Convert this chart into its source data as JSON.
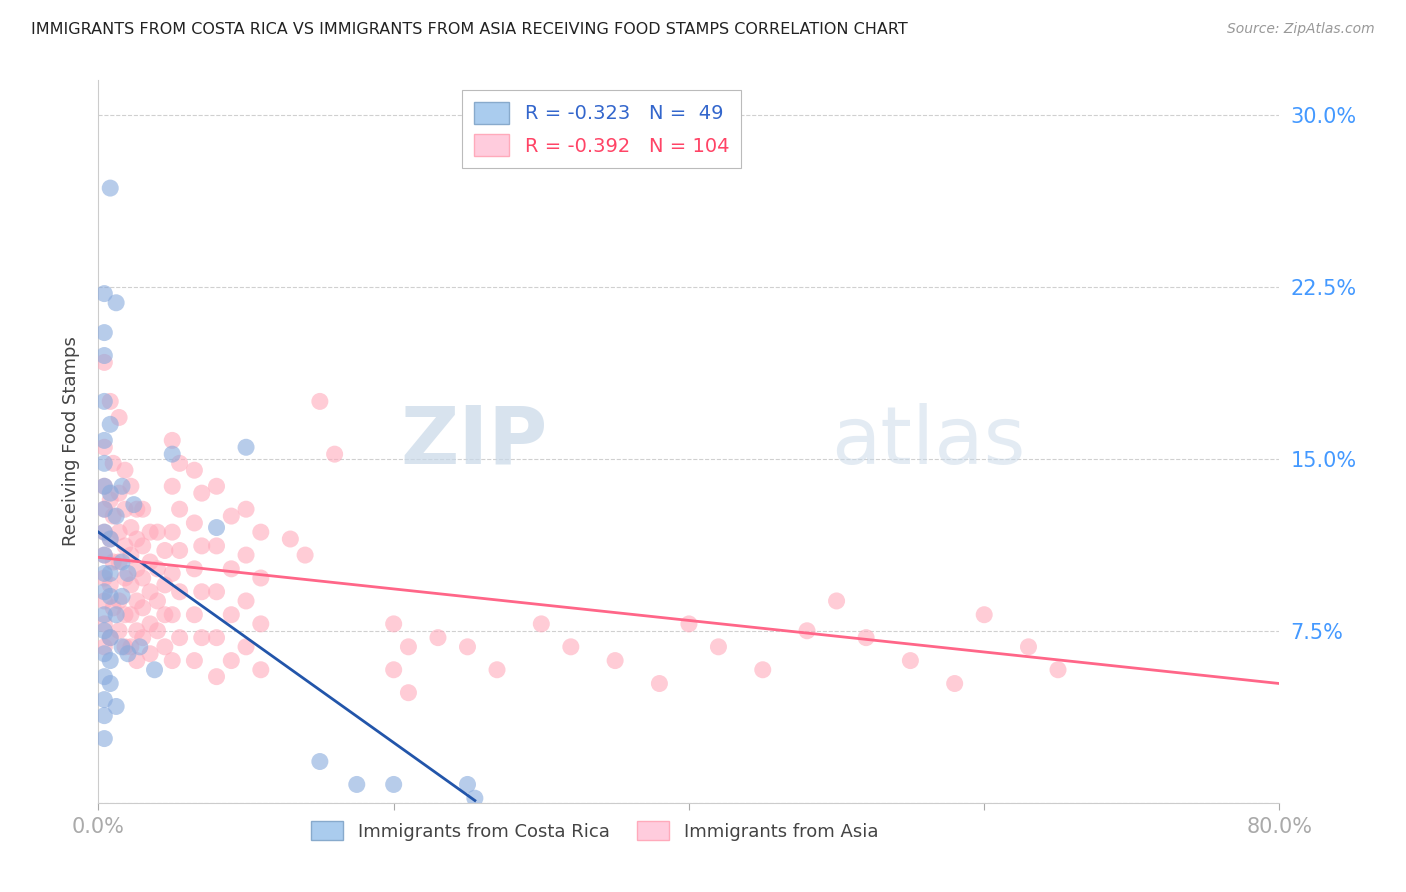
{
  "title": "IMMIGRANTS FROM COSTA RICA VS IMMIGRANTS FROM ASIA RECEIVING FOOD STAMPS CORRELATION CHART",
  "source": "Source: ZipAtlas.com",
  "ylabel": "Receiving Food Stamps",
  "yticks": [
    0.0,
    0.075,
    0.15,
    0.225,
    0.3
  ],
  "ytick_labels": [
    "",
    "7.5%",
    "15.0%",
    "22.5%",
    "30.0%"
  ],
  "xticks": [
    0.0,
    0.2,
    0.4,
    0.6,
    0.8
  ],
  "xtick_labels": [
    "0.0%",
    "",
    "",
    "",
    "80.0%"
  ],
  "xlim": [
    0.0,
    0.8
  ],
  "ylim": [
    0.0,
    0.315
  ],
  "watermark_zip": "ZIP",
  "watermark_atlas": "atlas",
  "background_color": "#ffffff",
  "grid_color": "#d0d0d0",
  "ytick_color": "#4499ff",
  "costa_rica_color": "#88aadd",
  "asia_color": "#ffaabb",
  "costa_rica_line_color": "#2255aa",
  "asia_line_color": "#ff6688",
  "cr_line_x0": 0.0,
  "cr_line_y0": 0.118,
  "cr_line_x1": 0.255,
  "cr_line_y1": 0.001,
  "asia_line_x0": 0.0,
  "asia_line_y0": 0.107,
  "asia_line_x1": 0.8,
  "asia_line_y1": 0.052,
  "costa_rica_scatter": [
    [
      0.008,
      0.268
    ],
    [
      0.004,
      0.222
    ],
    [
      0.012,
      0.218
    ],
    [
      0.004,
      0.205
    ],
    [
      0.004,
      0.195
    ],
    [
      0.004,
      0.175
    ],
    [
      0.008,
      0.165
    ],
    [
      0.004,
      0.158
    ],
    [
      0.004,
      0.148
    ],
    [
      0.004,
      0.138
    ],
    [
      0.008,
      0.135
    ],
    [
      0.004,
      0.128
    ],
    [
      0.012,
      0.125
    ],
    [
      0.004,
      0.118
    ],
    [
      0.008,
      0.115
    ],
    [
      0.004,
      0.108
    ],
    [
      0.004,
      0.1
    ],
    [
      0.008,
      0.1
    ],
    [
      0.004,
      0.092
    ],
    [
      0.008,
      0.09
    ],
    [
      0.004,
      0.082
    ],
    [
      0.012,
      0.082
    ],
    [
      0.004,
      0.075
    ],
    [
      0.008,
      0.072
    ],
    [
      0.004,
      0.065
    ],
    [
      0.008,
      0.062
    ],
    [
      0.004,
      0.055
    ],
    [
      0.008,
      0.052
    ],
    [
      0.004,
      0.045
    ],
    [
      0.012,
      0.042
    ],
    [
      0.016,
      0.138
    ],
    [
      0.016,
      0.105
    ],
    [
      0.016,
      0.09
    ],
    [
      0.016,
      0.068
    ],
    [
      0.02,
      0.1
    ],
    [
      0.02,
      0.065
    ],
    [
      0.024,
      0.13
    ],
    [
      0.028,
      0.068
    ],
    [
      0.038,
      0.058
    ],
    [
      0.05,
      0.152
    ],
    [
      0.08,
      0.12
    ],
    [
      0.1,
      0.155
    ],
    [
      0.15,
      0.018
    ],
    [
      0.175,
      0.008
    ],
    [
      0.2,
      0.008
    ],
    [
      0.25,
      0.008
    ],
    [
      0.255,
      0.002
    ],
    [
      0.004,
      0.038
    ],
    [
      0.004,
      0.028
    ]
  ],
  "asia_scatter": [
    [
      0.004,
      0.192
    ],
    [
      0.008,
      0.175
    ],
    [
      0.004,
      0.155
    ],
    [
      0.01,
      0.148
    ],
    [
      0.004,
      0.138
    ],
    [
      0.008,
      0.132
    ],
    [
      0.004,
      0.128
    ],
    [
      0.01,
      0.125
    ],
    [
      0.004,
      0.118
    ],
    [
      0.008,
      0.115
    ],
    [
      0.004,
      0.108
    ],
    [
      0.01,
      0.105
    ],
    [
      0.004,
      0.098
    ],
    [
      0.008,
      0.095
    ],
    [
      0.004,
      0.088
    ],
    [
      0.01,
      0.085
    ],
    [
      0.004,
      0.078
    ],
    [
      0.008,
      0.072
    ],
    [
      0.004,
      0.068
    ],
    [
      0.014,
      0.168
    ],
    [
      0.018,
      0.145
    ],
    [
      0.014,
      0.135
    ],
    [
      0.018,
      0.128
    ],
    [
      0.014,
      0.118
    ],
    [
      0.018,
      0.112
    ],
    [
      0.014,
      0.105
    ],
    [
      0.018,
      0.098
    ],
    [
      0.014,
      0.088
    ],
    [
      0.018,
      0.082
    ],
    [
      0.014,
      0.075
    ],
    [
      0.018,
      0.068
    ],
    [
      0.022,
      0.138
    ],
    [
      0.026,
      0.128
    ],
    [
      0.022,
      0.12
    ],
    [
      0.026,
      0.115
    ],
    [
      0.022,
      0.108
    ],
    [
      0.026,
      0.102
    ],
    [
      0.022,
      0.095
    ],
    [
      0.026,
      0.088
    ],
    [
      0.022,
      0.082
    ],
    [
      0.026,
      0.075
    ],
    [
      0.022,
      0.068
    ],
    [
      0.026,
      0.062
    ],
    [
      0.03,
      0.128
    ],
    [
      0.035,
      0.118
    ],
    [
      0.03,
      0.112
    ],
    [
      0.035,
      0.105
    ],
    [
      0.03,
      0.098
    ],
    [
      0.035,
      0.092
    ],
    [
      0.03,
      0.085
    ],
    [
      0.035,
      0.078
    ],
    [
      0.03,
      0.072
    ],
    [
      0.035,
      0.065
    ],
    [
      0.04,
      0.118
    ],
    [
      0.045,
      0.11
    ],
    [
      0.04,
      0.102
    ],
    [
      0.045,
      0.095
    ],
    [
      0.04,
      0.088
    ],
    [
      0.045,
      0.082
    ],
    [
      0.04,
      0.075
    ],
    [
      0.045,
      0.068
    ],
    [
      0.05,
      0.158
    ],
    [
      0.055,
      0.148
    ],
    [
      0.05,
      0.138
    ],
    [
      0.055,
      0.128
    ],
    [
      0.05,
      0.118
    ],
    [
      0.055,
      0.11
    ],
    [
      0.05,
      0.1
    ],
    [
      0.055,
      0.092
    ],
    [
      0.05,
      0.082
    ],
    [
      0.055,
      0.072
    ],
    [
      0.05,
      0.062
    ],
    [
      0.065,
      0.145
    ],
    [
      0.07,
      0.135
    ],
    [
      0.065,
      0.122
    ],
    [
      0.07,
      0.112
    ],
    [
      0.065,
      0.102
    ],
    [
      0.07,
      0.092
    ],
    [
      0.065,
      0.082
    ],
    [
      0.07,
      0.072
    ],
    [
      0.065,
      0.062
    ],
    [
      0.08,
      0.138
    ],
    [
      0.09,
      0.125
    ],
    [
      0.08,
      0.112
    ],
    [
      0.09,
      0.102
    ],
    [
      0.08,
      0.092
    ],
    [
      0.09,
      0.082
    ],
    [
      0.08,
      0.072
    ],
    [
      0.09,
      0.062
    ],
    [
      0.08,
      0.055
    ],
    [
      0.1,
      0.128
    ],
    [
      0.11,
      0.118
    ],
    [
      0.1,
      0.108
    ],
    [
      0.11,
      0.098
    ],
    [
      0.1,
      0.088
    ],
    [
      0.11,
      0.078
    ],
    [
      0.1,
      0.068
    ],
    [
      0.11,
      0.058
    ],
    [
      0.13,
      0.115
    ],
    [
      0.14,
      0.108
    ],
    [
      0.15,
      0.175
    ],
    [
      0.16,
      0.152
    ],
    [
      0.2,
      0.078
    ],
    [
      0.21,
      0.068
    ],
    [
      0.2,
      0.058
    ],
    [
      0.21,
      0.048
    ],
    [
      0.23,
      0.072
    ],
    [
      0.25,
      0.068
    ],
    [
      0.27,
      0.058
    ],
    [
      0.3,
      0.078
    ],
    [
      0.32,
      0.068
    ],
    [
      0.35,
      0.062
    ],
    [
      0.38,
      0.052
    ],
    [
      0.4,
      0.078
    ],
    [
      0.42,
      0.068
    ],
    [
      0.45,
      0.058
    ],
    [
      0.48,
      0.075
    ],
    [
      0.5,
      0.088
    ],
    [
      0.52,
      0.072
    ],
    [
      0.55,
      0.062
    ],
    [
      0.58,
      0.052
    ],
    [
      0.6,
      0.082
    ],
    [
      0.63,
      0.068
    ],
    [
      0.65,
      0.058
    ]
  ]
}
